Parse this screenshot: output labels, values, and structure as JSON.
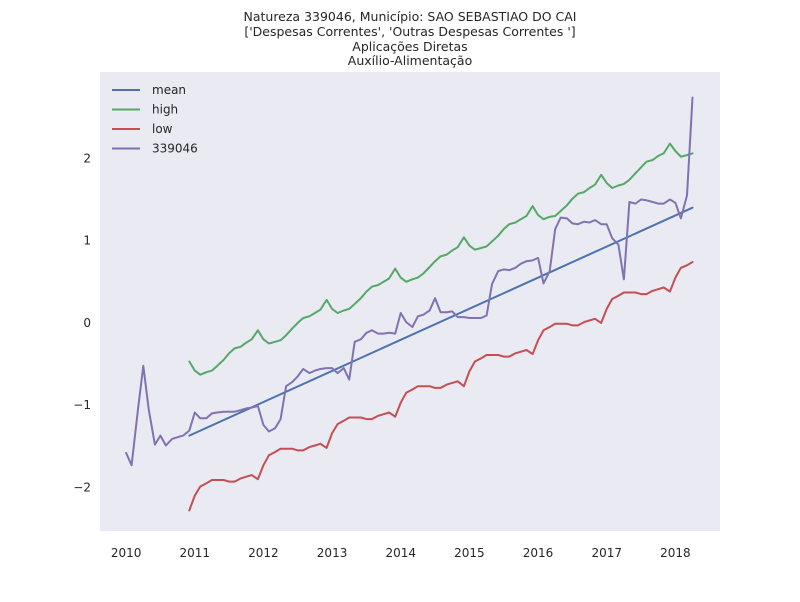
{
  "chart_data": {
    "type": "line",
    "title": [
      "Natureza 339046, Município: SAO SEBASTIAO DO CAI",
      "['Despesas Correntes', 'Outras Despesas Correntes ']",
      "Aplicações Diretas",
      "Auxílio-Alimentação"
    ],
    "xlabel": "",
    "ylabel": "",
    "xlim": [
      2009.62,
      2018.65
    ],
    "ylim": [
      -2.53,
      3.05
    ],
    "xticks": [
      2010,
      2011,
      2012,
      2013,
      2014,
      2015,
      2016,
      2017,
      2018
    ],
    "xtick_labels": [
      "2010",
      "2011",
      "2012",
      "2013",
      "2014",
      "2015",
      "2016",
      "2017",
      "2018"
    ],
    "yticks": [
      -2,
      -1,
      0,
      1,
      2
    ],
    "ytick_labels": [
      "−2",
      "−1",
      "0",
      "1",
      "2"
    ],
    "grid": false,
    "background": "#eaeaf2",
    "legend": "top-left",
    "series": [
      {
        "name": "mean",
        "color": "#4c72b0",
        "x": [
          2010.92,
          2018.25
        ],
        "y": [
          -1.37,
          1.4
        ]
      },
      {
        "name": "high",
        "color": "#55a868",
        "x": [
          2010.92,
          2011.0,
          2011.08,
          2011.17,
          2011.25,
          2011.33,
          2011.42,
          2011.5,
          2011.58,
          2011.67,
          2011.75,
          2011.83,
          2011.92,
          2012.0,
          2012.08,
          2012.17,
          2012.25,
          2012.33,
          2012.42,
          2012.5,
          2012.58,
          2012.67,
          2012.75,
          2012.83,
          2012.92,
          2013.0,
          2013.08,
          2013.17,
          2013.25,
          2013.33,
          2013.42,
          2013.5,
          2013.58,
          2013.67,
          2013.75,
          2013.83,
          2013.92,
          2014.0,
          2014.08,
          2014.17,
          2014.25,
          2014.33,
          2014.42,
          2014.5,
          2014.58,
          2014.67,
          2014.75,
          2014.83,
          2014.92,
          2015.0,
          2015.08,
          2015.17,
          2015.25,
          2015.33,
          2015.42,
          2015.5,
          2015.58,
          2015.67,
          2015.75,
          2015.83,
          2015.92,
          2016.0,
          2016.08,
          2016.17,
          2016.25,
          2016.33,
          2016.42,
          2016.5,
          2016.58,
          2016.67,
          2016.75,
          2016.83,
          2016.92,
          2017.0,
          2017.08,
          2017.17,
          2017.25,
          2017.33,
          2017.42,
          2017.5,
          2017.58,
          2017.67,
          2017.75,
          2017.83,
          2017.92,
          2018.0,
          2018.08,
          2018.17,
          2018.25
        ],
        "y": [
          -0.47,
          -0.58,
          -0.63,
          -0.6,
          -0.58,
          -0.52,
          -0.45,
          -0.37,
          -0.31,
          -0.29,
          -0.24,
          -0.2,
          -0.09,
          -0.2,
          -0.25,
          -0.23,
          -0.21,
          -0.15,
          -0.07,
          0.0,
          0.06,
          0.08,
          0.12,
          0.16,
          0.28,
          0.17,
          0.12,
          0.15,
          0.17,
          0.23,
          0.3,
          0.38,
          0.44,
          0.46,
          0.5,
          0.54,
          0.66,
          0.55,
          0.5,
          0.53,
          0.55,
          0.6,
          0.68,
          0.75,
          0.81,
          0.83,
          0.88,
          0.92,
          1.04,
          0.94,
          0.89,
          0.91,
          0.93,
          0.99,
          1.06,
          1.14,
          1.2,
          1.22,
          1.26,
          1.3,
          1.42,
          1.31,
          1.26,
          1.29,
          1.3,
          1.36,
          1.43,
          1.51,
          1.57,
          1.59,
          1.64,
          1.68,
          1.8,
          1.7,
          1.64,
          1.67,
          1.69,
          1.74,
          1.82,
          1.89,
          1.96,
          1.98,
          2.03,
          2.06,
          2.18,
          2.09,
          2.02,
          2.04,
          2.06
        ]
      },
      {
        "name": "low",
        "color": "#c44e52",
        "x": [
          2010.92,
          2011.0,
          2011.08,
          2011.17,
          2011.25,
          2011.33,
          2011.42,
          2011.5,
          2011.58,
          2011.67,
          2011.75,
          2011.83,
          2011.92,
          2012.0,
          2012.08,
          2012.17,
          2012.25,
          2012.33,
          2012.42,
          2012.5,
          2012.58,
          2012.67,
          2012.75,
          2012.83,
          2012.92,
          2013.0,
          2013.08,
          2013.17,
          2013.25,
          2013.33,
          2013.42,
          2013.5,
          2013.58,
          2013.67,
          2013.75,
          2013.83,
          2013.92,
          2014.0,
          2014.08,
          2014.17,
          2014.25,
          2014.33,
          2014.42,
          2014.5,
          2014.58,
          2014.67,
          2014.75,
          2014.83,
          2014.92,
          2015.0,
          2015.08,
          2015.17,
          2015.25,
          2015.33,
          2015.42,
          2015.5,
          2015.58,
          2015.67,
          2015.75,
          2015.83,
          2015.92,
          2016.0,
          2016.08,
          2016.17,
          2016.25,
          2016.33,
          2016.42,
          2016.5,
          2016.58,
          2016.67,
          2016.75,
          2016.83,
          2016.92,
          2017.0,
          2017.08,
          2017.17,
          2017.25,
          2017.33,
          2017.42,
          2017.5,
          2017.58,
          2017.67,
          2017.75,
          2017.83,
          2017.92,
          2018.0,
          2018.08,
          2018.17,
          2018.25
        ],
        "y": [
          -2.28,
          -2.1,
          -1.99,
          -1.95,
          -1.91,
          -1.91,
          -1.91,
          -1.93,
          -1.93,
          -1.89,
          -1.87,
          -1.85,
          -1.9,
          -1.73,
          -1.61,
          -1.57,
          -1.53,
          -1.53,
          -1.53,
          -1.55,
          -1.55,
          -1.51,
          -1.49,
          -1.47,
          -1.52,
          -1.34,
          -1.23,
          -1.19,
          -1.15,
          -1.15,
          -1.15,
          -1.17,
          -1.17,
          -1.13,
          -1.11,
          -1.09,
          -1.14,
          -0.97,
          -0.85,
          -0.81,
          -0.77,
          -0.77,
          -0.77,
          -0.79,
          -0.79,
          -0.75,
          -0.73,
          -0.71,
          -0.77,
          -0.59,
          -0.47,
          -0.43,
          -0.39,
          -0.39,
          -0.39,
          -0.41,
          -0.41,
          -0.37,
          -0.35,
          -0.33,
          -0.38,
          -0.21,
          -0.09,
          -0.05,
          -0.01,
          -0.01,
          -0.01,
          -0.03,
          -0.03,
          0.01,
          0.03,
          0.05,
          0.0,
          0.17,
          0.29,
          0.33,
          0.37,
          0.37,
          0.37,
          0.35,
          0.35,
          0.39,
          0.41,
          0.43,
          0.38,
          0.55,
          0.67,
          0.7,
          0.74
        ]
      },
      {
        "name": "339046",
        "color": "#8172b2",
        "x": [
          2010.0,
          2010.08,
          2010.17,
          2010.25,
          2010.33,
          2010.42,
          2010.5,
          2010.58,
          2010.67,
          2010.75,
          2010.83,
          2010.92,
          2011.0,
          2011.08,
          2011.17,
          2011.25,
          2011.33,
          2011.42,
          2011.5,
          2011.58,
          2011.67,
          2011.75,
          2011.83,
          2011.92,
          2012.0,
          2012.08,
          2012.17,
          2012.25,
          2012.33,
          2012.42,
          2012.5,
          2012.58,
          2012.67,
          2012.75,
          2012.83,
          2012.92,
          2013.0,
          2013.08,
          2013.17,
          2013.25,
          2013.33,
          2013.42,
          2013.5,
          2013.58,
          2013.67,
          2013.75,
          2013.83,
          2013.92,
          2014.0,
          2014.08,
          2014.17,
          2014.25,
          2014.33,
          2014.42,
          2014.5,
          2014.58,
          2014.67,
          2014.75,
          2014.83,
          2014.92,
          2015.0,
          2015.08,
          2015.17,
          2015.25,
          2015.33,
          2015.42,
          2015.5,
          2015.58,
          2015.67,
          2015.75,
          2015.83,
          2015.92,
          2016.0,
          2016.08,
          2016.17,
          2016.25,
          2016.33,
          2016.42,
          2016.5,
          2016.58,
          2016.67,
          2016.75,
          2016.83,
          2016.92,
          2017.0,
          2017.08,
          2017.17,
          2017.25,
          2017.33,
          2017.42,
          2017.5,
          2017.58,
          2017.67,
          2017.75,
          2017.83,
          2017.92,
          2018.0,
          2018.08,
          2018.17,
          2018.25
        ],
        "y": [
          -1.58,
          -1.73,
          -1.07,
          -0.52,
          -1.05,
          -1.48,
          -1.37,
          -1.49,
          -1.41,
          -1.39,
          -1.37,
          -1.31,
          -1.09,
          -1.16,
          -1.16,
          -1.1,
          -1.09,
          -1.08,
          -1.08,
          -1.08,
          -1.06,
          -1.04,
          -1.03,
          -1.01,
          -1.24,
          -1.32,
          -1.28,
          -1.17,
          -0.77,
          -0.72,
          -0.65,
          -0.56,
          -0.61,
          -0.58,
          -0.56,
          -0.55,
          -0.55,
          -0.61,
          -0.55,
          -0.69,
          -0.23,
          -0.2,
          -0.12,
          -0.09,
          -0.13,
          -0.13,
          -0.12,
          -0.13,
          0.12,
          0.01,
          -0.05,
          0.08,
          0.1,
          0.15,
          0.3,
          0.13,
          0.13,
          0.14,
          0.07,
          0.07,
          0.06,
          0.06,
          0.06,
          0.09,
          0.47,
          0.63,
          0.65,
          0.64,
          0.67,
          0.72,
          0.75,
          0.76,
          0.79,
          0.48,
          0.63,
          1.14,
          1.28,
          1.27,
          1.21,
          1.2,
          1.23,
          1.22,
          1.25,
          1.2,
          1.2,
          1.03,
          0.95,
          0.53,
          1.47,
          1.45,
          1.5,
          1.49,
          1.47,
          1.45,
          1.45,
          1.5,
          1.46,
          1.27,
          1.55,
          2.74
        ]
      }
    ]
  }
}
